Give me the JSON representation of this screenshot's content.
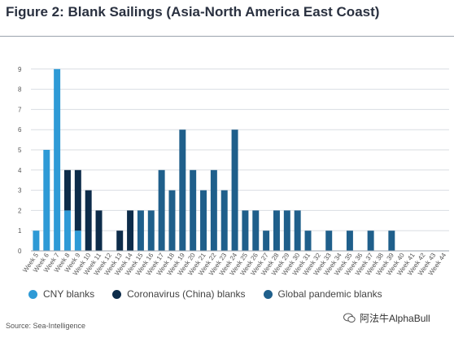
{
  "title": "Figure 2: Blank Sailings (Asia-North America East Coast)",
  "source": "Source: Sea-Intelligence",
  "watermark": "阿法牛AlphaBull",
  "colors": {
    "cny": "#2e9ad6",
    "corona": "#0d2c4a",
    "global": "#1f5f8b",
    "grid": "#d9dde2",
    "axis": "#9aa3ad"
  },
  "legend": [
    {
      "label": "CNY blanks",
      "color": "#2e9ad6",
      "icon": "circle-marker"
    },
    {
      "label": "Coronavirus (China) blanks",
      "color": "#0d2c4a",
      "icon": "circle-marker"
    },
    {
      "label": "Global pandemic blanks",
      "color": "#1f5f8b",
      "icon": "circle-marker"
    }
  ],
  "chart_data": {
    "type": "bar",
    "stacked": true,
    "title": "Figure 2: Blank Sailings (Asia-North America East Coast)",
    "xlabel": "",
    "ylabel": "",
    "ylim": [
      0,
      10
    ],
    "yticks": [
      0,
      1,
      2,
      3,
      4,
      5,
      6,
      7,
      8,
      9
    ],
    "grid": true,
    "legend_position": "bottom",
    "categories": [
      "Week 5",
      "Week 6",
      "Week 7",
      "Week 8",
      "Week 9",
      "Week 10",
      "Week 11",
      "Week 12",
      "Week 13",
      "Week 14",
      "Week 15",
      "Week 16",
      "Week 17",
      "Week 18",
      "Week 19",
      "Week 20",
      "Week 21",
      "Week 22",
      "Week 23",
      "Week 24",
      "Week 25",
      "Week 26",
      "Week 27",
      "Week 28",
      "Week 29",
      "Week 30",
      "Week 31",
      "Week 32",
      "Week 33",
      "Week 34",
      "Week 35",
      "Week 36",
      "Week 37",
      "Week 38",
      "Week 39",
      "Week 40",
      "Week 41",
      "Week 42",
      "Week 43",
      "Week 44"
    ],
    "series": [
      {
        "name": "CNY blanks",
        "color": "#2e9ad6",
        "values": [
          1,
          5,
          9,
          2,
          1,
          0,
          0,
          0,
          0,
          0,
          0,
          0,
          0,
          0,
          0,
          0,
          0,
          0,
          0,
          0,
          0,
          0,
          0,
          0,
          0,
          0,
          0,
          0,
          0,
          0,
          0,
          0,
          0,
          0,
          0,
          0,
          0,
          0,
          0,
          0
        ]
      },
      {
        "name": "Coronavirus (China) blanks",
        "color": "#0d2c4a",
        "values": [
          0,
          0,
          0,
          2,
          3,
          3,
          2,
          0,
          1,
          2,
          0,
          0,
          0,
          0,
          0,
          0,
          0,
          0,
          0,
          0,
          0,
          0,
          0,
          0,
          0,
          0,
          0,
          0,
          0,
          0,
          0,
          0,
          0,
          0,
          0,
          0,
          0,
          0,
          0,
          0
        ]
      },
      {
        "name": "Global pandemic blanks",
        "color": "#1f5f8b",
        "values": [
          0,
          0,
          0,
          0,
          0,
          0,
          0,
          0,
          0,
          0,
          2,
          2,
          4,
          3,
          6,
          4,
          3,
          4,
          3,
          6,
          2,
          2,
          1,
          2,
          2,
          2,
          1,
          0,
          1,
          0,
          1,
          0,
          1,
          0,
          1,
          0,
          0,
          0,
          0,
          0
        ]
      }
    ]
  }
}
